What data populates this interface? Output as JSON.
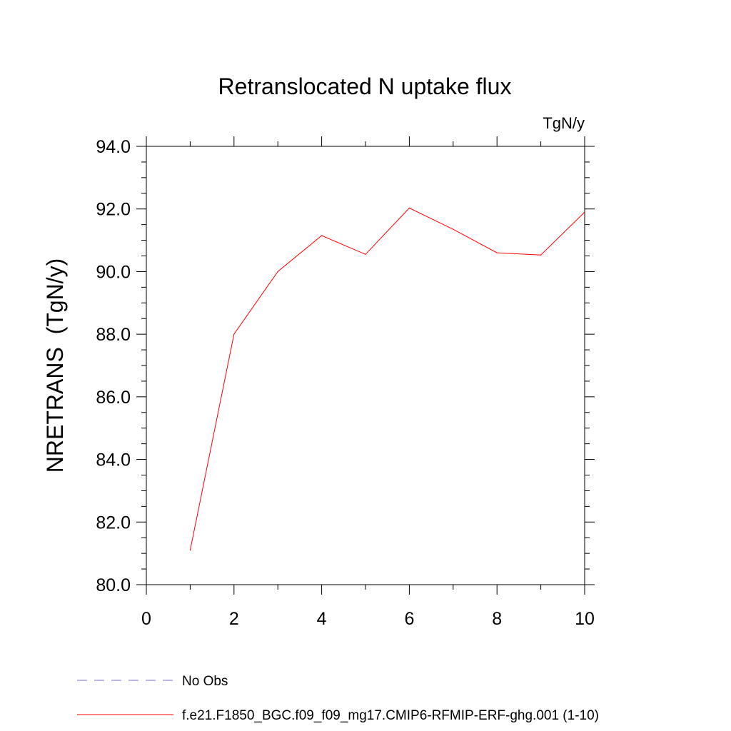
{
  "chart_data": {
    "type": "line",
    "title": "Retranslocated N uptake flux",
    "units": "TgN/y",
    "xlabel": "",
    "ylabel": "NRETRANS  (TgN/y)",
    "xlim": [
      0,
      10
    ],
    "ylim": [
      80,
      94
    ],
    "x_ticks": [
      0,
      2,
      4,
      6,
      8,
      10
    ],
    "x_tick_labels": [
      "0",
      "2",
      "4",
      "6",
      "8",
      "10"
    ],
    "y_ticks": [
      80,
      82,
      84,
      86,
      88,
      90,
      92,
      94
    ],
    "y_tick_labels": [
      "80.0",
      "82.0",
      "84.0",
      "86.0",
      "88.0",
      "90.0",
      "92.0",
      "94.0"
    ],
    "grid": false,
    "legend_position": "bottom",
    "series": [
      {
        "name": "f.e21.F1850_BGC.f09_f09_mg17.CMIP6-RFMIP-ERF-ghg.001 (1-10)",
        "color": "#ff0000",
        "style": "solid",
        "x": [
          1,
          2,
          3,
          4,
          5,
          6,
          7,
          8,
          9,
          10
        ],
        "y": [
          81.1,
          88.0,
          90.0,
          91.15,
          90.55,
          92.03,
          91.35,
          90.6,
          90.53,
          91.9
        ]
      }
    ],
    "legend": [
      {
        "label": "No Obs",
        "color": "#7b68c8",
        "style": "dashed"
      },
      {
        "label": "f.e21.F1850_BGC.f09_f09_mg17.CMIP6-RFMIP-ERF-ghg.001 (1-10)",
        "color": "#ff0000",
        "style": "solid"
      }
    ]
  }
}
